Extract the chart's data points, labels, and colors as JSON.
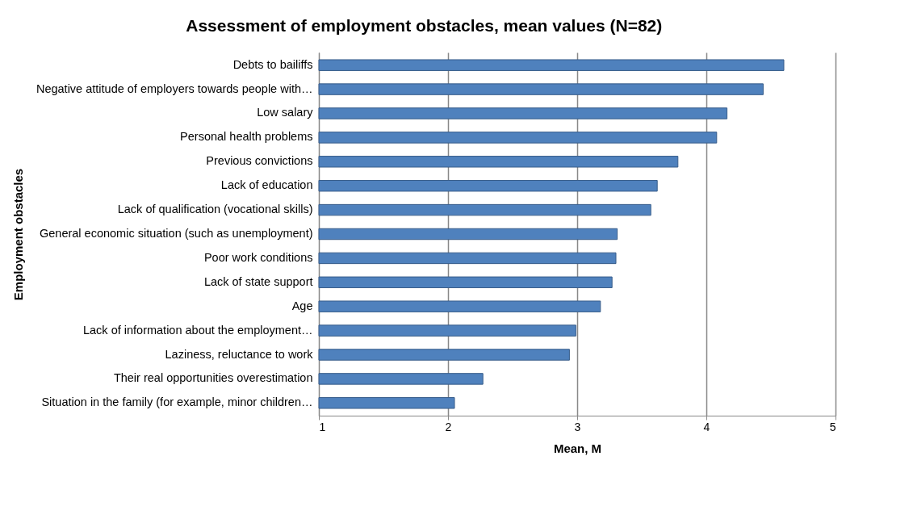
{
  "chart_data": {
    "type": "bar",
    "orientation": "horizontal",
    "title": "Assessment of employment obstacles, mean values (N=82)",
    "xlabel": "Mean, M",
    "ylabel": "Employment obstacles",
    "categories": [
      "Debts to bailiffs",
      "Negative attitude of employers towards people with…",
      "Low salary",
      "Personal health problems",
      "Previous convictions",
      "Lack of education",
      "Lack of qualification (vocational skills)",
      "General economic situation (such as unemployment)",
      "Poor work conditions",
      "Lack of state support",
      "Age",
      "Lack of information about the employment…",
      "Laziness, reluctance to work",
      "Their real opportunities overestimation",
      "Situation in the family (for example, minor children…"
    ],
    "values": [
      4.6,
      4.44,
      4.16,
      4.08,
      3.78,
      3.62,
      3.57,
      3.31,
      3.3,
      3.27,
      3.18,
      2.99,
      2.94,
      2.27,
      2.05
    ],
    "color": "#4f81bd",
    "xlim": [
      1,
      5
    ],
    "xticks": [
      1,
      2,
      3,
      4,
      5
    ],
    "grid": "x"
  }
}
